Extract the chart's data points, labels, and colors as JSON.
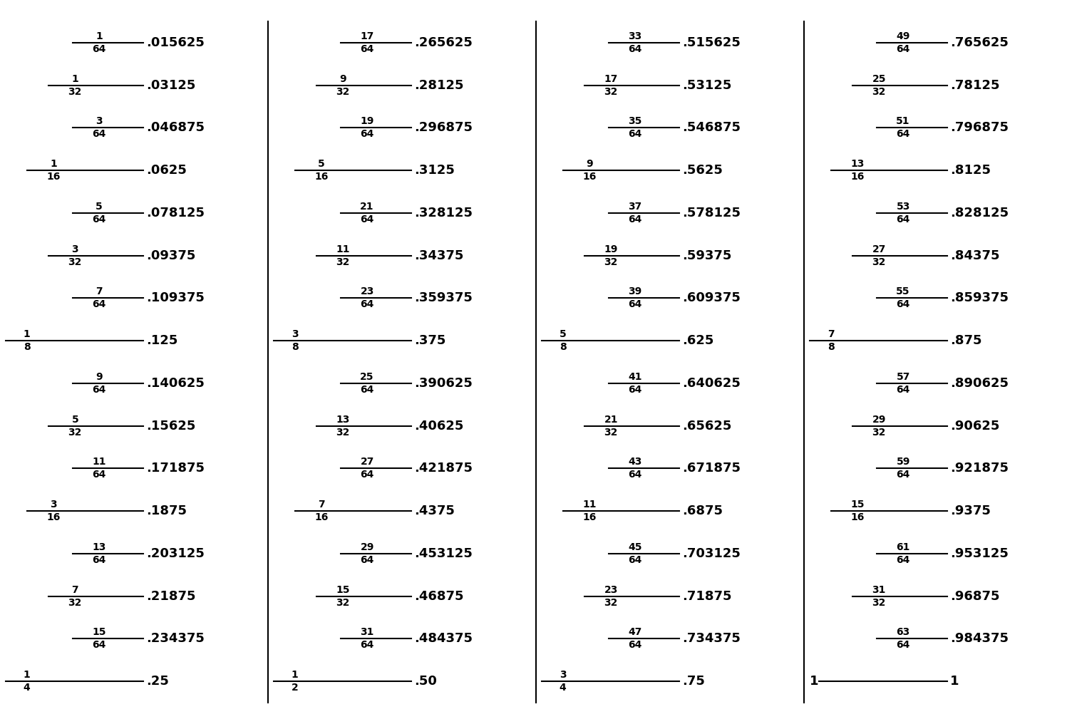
{
  "columns": [
    {
      "entries": [
        {
          "num": "1",
          "den": "64",
          "decimal": ".015625",
          "level": 3
        },
        {
          "num": "1",
          "den": "32",
          "decimal": ".03125",
          "level": 2
        },
        {
          "num": "3",
          "den": "64",
          "decimal": ".046875",
          "level": 3
        },
        {
          "num": "1",
          "den": "16",
          "decimal": ".0625",
          "level": 1
        },
        {
          "num": "5",
          "den": "64",
          "decimal": ".078125",
          "level": 3
        },
        {
          "num": "3",
          "den": "32",
          "decimal": ".09375",
          "level": 2
        },
        {
          "num": "7",
          "den": "64",
          "decimal": ".109375",
          "level": 3
        },
        {
          "num": "1",
          "den": "8",
          "decimal": ".125",
          "level": 0
        },
        {
          "num": "9",
          "den": "64",
          "decimal": ".140625",
          "level": 3
        },
        {
          "num": "5",
          "den": "32",
          "decimal": ".15625",
          "level": 2
        },
        {
          "num": "11",
          "den": "64",
          "decimal": ".171875",
          "level": 3
        },
        {
          "num": "3",
          "den": "16",
          "decimal": ".1875",
          "level": 1
        },
        {
          "num": "13",
          "den": "64",
          "decimal": ".203125",
          "level": 3
        },
        {
          "num": "7",
          "den": "32",
          "decimal": ".21875",
          "level": 2
        },
        {
          "num": "15",
          "den": "64",
          "decimal": ".234375",
          "level": 3
        },
        {
          "num": "1",
          "den": "4",
          "decimal": ".25",
          "level": 0
        }
      ]
    },
    {
      "entries": [
        {
          "num": "17",
          "den": "64",
          "decimal": ".265625",
          "level": 3
        },
        {
          "num": "9",
          "den": "32",
          "decimal": ".28125",
          "level": 2
        },
        {
          "num": "19",
          "den": "64",
          "decimal": ".296875",
          "level": 3
        },
        {
          "num": "5",
          "den": "16",
          "decimal": ".3125",
          "level": 1
        },
        {
          "num": "21",
          "den": "64",
          "decimal": ".328125",
          "level": 3
        },
        {
          "num": "11",
          "den": "32",
          "decimal": ".34375",
          "level": 2
        },
        {
          "num": "23",
          "den": "64",
          "decimal": ".359375",
          "level": 3
        },
        {
          "num": "3",
          "den": "8",
          "decimal": ".375",
          "level": 0
        },
        {
          "num": "25",
          "den": "64",
          "decimal": ".390625",
          "level": 3
        },
        {
          "num": "13",
          "den": "32",
          "decimal": ".40625",
          "level": 2
        },
        {
          "num": "27",
          "den": "64",
          "decimal": ".421875",
          "level": 3
        },
        {
          "num": "7",
          "den": "16",
          "decimal": ".4375",
          "level": 1
        },
        {
          "num": "29",
          "den": "64",
          "decimal": ".453125",
          "level": 3
        },
        {
          "num": "15",
          "den": "32",
          "decimal": ".46875",
          "level": 2
        },
        {
          "num": "31",
          "den": "64",
          "decimal": ".484375",
          "level": 3
        },
        {
          "num": "1",
          "den": "2",
          "decimal": ".50",
          "level": 0
        }
      ]
    },
    {
      "entries": [
        {
          "num": "33",
          "den": "64",
          "decimal": ".515625",
          "level": 3
        },
        {
          "num": "17",
          "den": "32",
          "decimal": ".53125",
          "level": 2
        },
        {
          "num": "35",
          "den": "64",
          "decimal": ".546875",
          "level": 3
        },
        {
          "num": "9",
          "den": "16",
          "decimal": ".5625",
          "level": 1
        },
        {
          "num": "37",
          "den": "64",
          "decimal": ".578125",
          "level": 3
        },
        {
          "num": "19",
          "den": "32",
          "decimal": ".59375",
          "level": 2
        },
        {
          "num": "39",
          "den": "64",
          "decimal": ".609375",
          "level": 3
        },
        {
          "num": "5",
          "den": "8",
          "decimal": ".625",
          "level": 0
        },
        {
          "num": "41",
          "den": "64",
          "decimal": ".640625",
          "level": 3
        },
        {
          "num": "21",
          "den": "32",
          "decimal": ".65625",
          "level": 2
        },
        {
          "num": "43",
          "den": "64",
          "decimal": ".671875",
          "level": 3
        },
        {
          "num": "11",
          "den": "16",
          "decimal": ".6875",
          "level": 1
        },
        {
          "num": "45",
          "den": "64",
          "decimal": ".703125",
          "level": 3
        },
        {
          "num": "23",
          "den": "32",
          "decimal": ".71875",
          "level": 2
        },
        {
          "num": "47",
          "den": "64",
          "decimal": ".734375",
          "level": 3
        },
        {
          "num": "3",
          "den": "4",
          "decimal": ".75",
          "level": 0
        }
      ]
    },
    {
      "entries": [
        {
          "num": "49",
          "den": "64",
          "decimal": ".765625",
          "level": 3
        },
        {
          "num": "25",
          "den": "32",
          "decimal": ".78125",
          "level": 2
        },
        {
          "num": "51",
          "den": "64",
          "decimal": ".796875",
          "level": 3
        },
        {
          "num": "13",
          "den": "16",
          "decimal": ".8125",
          "level": 1
        },
        {
          "num": "53",
          "den": "64",
          "decimal": ".828125",
          "level": 3
        },
        {
          "num": "27",
          "den": "32",
          "decimal": ".84375",
          "level": 2
        },
        {
          "num": "55",
          "den": "64",
          "decimal": ".859375",
          "level": 3
        },
        {
          "num": "7",
          "den": "8",
          "decimal": ".875",
          "level": 0
        },
        {
          "num": "57",
          "den": "64",
          "decimal": ".890625",
          "level": 3
        },
        {
          "num": "29",
          "den": "32",
          "decimal": ".90625",
          "level": 2
        },
        {
          "num": "59",
          "den": "64",
          "decimal": ".921875",
          "level": 3
        },
        {
          "num": "15",
          "den": "16",
          "decimal": ".9375",
          "level": 1
        },
        {
          "num": "61",
          "den": "64",
          "decimal": ".953125",
          "level": 3
        },
        {
          "num": "31",
          "den": "32",
          "decimal": ".96875",
          "level": 2
        },
        {
          "num": "63",
          "den": "64",
          "decimal": ".984375",
          "level": 3
        },
        {
          "num": "1",
          "den": "1",
          "decimal": "1",
          "level": 0
        }
      ]
    }
  ],
  "bg_color": "#ffffff",
  "text_color": "#000000",
  "line_color": "#000000",
  "num_fontsize": 10,
  "den_fontsize": 10,
  "dec_fontsize": 13,
  "whole_fontsize": 13,
  "figwidth": 15.04,
  "figheight": 10.16,
  "dpi": 100
}
